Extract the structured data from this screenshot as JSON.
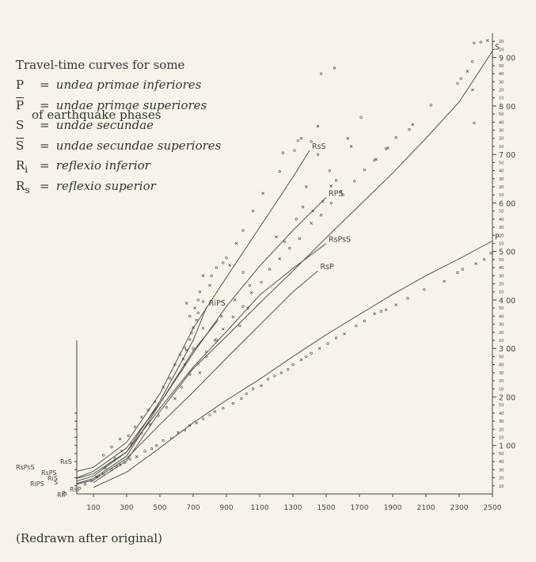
{
  "title_lines": [
    "Travel-time curves for some",
    "of earthquake phases"
  ],
  "legend": [
    {
      "symbol": "P",
      "overline": false,
      "sub": "",
      "eq": "=",
      "desc": "undea primae inferiores"
    },
    {
      "symbol": "P",
      "overline": true,
      "sub": "",
      "eq": "=",
      "desc": "undae primae superiores"
    },
    {
      "symbol": "S",
      "overline": false,
      "sub": "",
      "eq": "=",
      "desc": "undae secundae"
    },
    {
      "symbol": "S",
      "overline": true,
      "sub": "",
      "eq": "=",
      "desc": "undae secundae superiores"
    },
    {
      "symbol": "R",
      "overline": false,
      "sub": "i",
      "eq": "=",
      "desc": "reflexio inferior"
    },
    {
      "symbol": "R",
      "overline": false,
      "sub": "s",
      "eq": "=",
      "desc": "reflexio superior"
    }
  ],
  "caption": "(Redrawn after original)",
  "colors": {
    "background": "#f7f3e8",
    "ink": "#444444"
  },
  "chart_data": {
    "type": "scatter",
    "xlim": [
      0,
      2500
    ],
    "ylim": [
      0,
      570
    ],
    "x_ticks": [
      100,
      300,
      500,
      700,
      900,
      1100,
      1300,
      1500,
      1700,
      1900,
      2100,
      2300,
      2500
    ],
    "y_major_ticks": [
      {
        "value": 60,
        "label": "1 00"
      },
      {
        "value": 120,
        "label": "2 00"
      },
      {
        "value": 180,
        "label": "3 00"
      },
      {
        "value": 240,
        "label": "4 00"
      },
      {
        "value": 300,
        "label": "5 00"
      },
      {
        "value": 360,
        "label": "6 00"
      },
      {
        "value": 420,
        "label": "7 00"
      },
      {
        "value": 480,
        "label": "8 00"
      },
      {
        "value": 540,
        "label": "9 00"
      }
    ],
    "y_minor_labels": [
      "10",
      "20",
      "30",
      "40",
      "50"
    ],
    "series": [
      {
        "name": "S",
        "label": "S",
        "x": [
          100,
          300,
          500,
          700,
          900,
          1100,
          1300,
          1500,
          1700,
          1900,
          2100,
          2300,
          2500
        ],
        "y": [
          14,
          41,
          102,
          155,
          195,
          236,
          276,
          317,
          357,
          397,
          440,
          485,
          548
        ]
      },
      {
        "name": "P",
        "label": "P",
        "x": [
          100,
          300,
          500,
          700,
          900,
          1100,
          1300,
          1500,
          1700,
          1900,
          2100,
          2300,
          2500
        ],
        "y": [
          8,
          27,
          57,
          88,
          116,
          142,
          170,
          197,
          222,
          247,
          270,
          291,
          313
        ]
      },
      {
        "name": "RsS",
        "label": "RsS",
        "x": [
          0,
          100,
          300,
          500,
          700,
          900,
          1100,
          1300,
          1400
        ],
        "y": [
          28,
          33,
          64,
          124,
          205,
          268,
          330,
          392,
          425
        ]
      },
      {
        "name": "RPS",
        "label": "RPS",
        "x": [
          0,
          100,
          300,
          500,
          700,
          900,
          1100,
          1300,
          1500
        ],
        "y": [
          20,
          28,
          57,
          112,
          174,
          232,
          282,
          326,
          367
        ]
      },
      {
        "name": "RsPsS",
        "label": "RsPsS",
        "x": [
          0,
          100,
          300,
          500,
          700,
          900,
          1100,
          1300,
          1500
        ],
        "y": [
          19,
          25,
          52,
          106,
          157,
          201,
          246,
          279,
          310
        ]
      },
      {
        "name": "RsP",
        "label": "RsP",
        "x": [
          0,
          100,
          300,
          500,
          700,
          900,
          1100,
          1300,
          1450
        ],
        "y": [
          12,
          17,
          44,
          86,
          126,
          168,
          209,
          250,
          276
        ]
      },
      {
        "name": "RiPS",
        "label": "RiPS",
        "x": [
          0,
          100,
          300,
          500,
          700,
          780
        ],
        "y": [
          16,
          22,
          52,
          115,
          190,
          231
        ]
      },
      {
        "name": "ScS",
        "label": "",
        "x": [
          0,
          100,
          300,
          500,
          700,
          850
        ],
        "y": [
          13,
          19,
          47,
          112,
          177,
          215
        ]
      }
    ],
    "axis_phase_labels": [
      "RsS",
      "RsPsS",
      "RsPS",
      "RiS",
      "RiPS",
      "RsP",
      "RiP",
      "S",
      "P"
    ],
    "points": [
      [
        50,
        12
      ],
      [
        90,
        16
      ],
      [
        130,
        22
      ],
      [
        160,
        25
      ],
      [
        210,
        30
      ],
      [
        240,
        34
      ],
      [
        260,
        36
      ],
      [
        290,
        39
      ],
      [
        320,
        43
      ],
      [
        360,
        46
      ],
      [
        410,
        53
      ],
      [
        450,
        56
      ],
      [
        480,
        60
      ],
      [
        520,
        66
      ],
      [
        570,
        69
      ],
      [
        610,
        76
      ],
      [
        650,
        79
      ],
      [
        680,
        85
      ],
      [
        720,
        88
      ],
      [
        760,
        93
      ],
      [
        800,
        98
      ],
      [
        830,
        102
      ],
      [
        880,
        106
      ],
      [
        940,
        112
      ],
      [
        990,
        118
      ],
      [
        1020,
        124
      ],
      [
        1060,
        130
      ],
      [
        1110,
        134
      ],
      [
        1150,
        142
      ],
      [
        1190,
        146
      ],
      [
        1230,
        150
      ],
      [
        1270,
        154
      ],
      [
        1300,
        160
      ],
      [
        1350,
        166
      ],
      [
        1380,
        170
      ],
      [
        1410,
        174
      ],
      [
        1460,
        180
      ],
      [
        1510,
        186
      ],
      [
        1560,
        193
      ],
      [
        1610,
        198
      ],
      [
        1680,
        208
      ],
      [
        1730,
        214
      ],
      [
        1790,
        223
      ],
      [
        1830,
        226
      ],
      [
        1860,
        228
      ],
      [
        1920,
        234
      ],
      [
        1990,
        242
      ],
      [
        2090,
        253
      ],
      [
        2210,
        263
      ],
      [
        2290,
        274
      ],
      [
        2320,
        278
      ],
      [
        2400,
        285
      ],
      [
        2450,
        290
      ],
      [
        2490,
        298
      ],
      [
        120,
        21
      ],
      [
        170,
        32
      ],
      [
        230,
        44
      ],
      [
        270,
        53
      ],
      [
        330,
        62
      ],
      [
        390,
        75
      ],
      [
        440,
        86
      ],
      [
        490,
        97
      ],
      [
        540,
        107
      ],
      [
        590,
        118
      ],
      [
        630,
        132
      ],
      [
        680,
        148
      ],
      [
        730,
        161
      ],
      [
        780,
        176
      ],
      [
        840,
        191
      ],
      [
        880,
        204
      ],
      [
        940,
        219
      ],
      [
        1000,
        232
      ],
      [
        1050,
        249
      ],
      [
        1110,
        262
      ],
      [
        1160,
        278
      ],
      [
        1220,
        291
      ],
      [
        1280,
        304
      ],
      [
        1340,
        316
      ],
      [
        1410,
        335
      ],
      [
        1470,
        345
      ],
      [
        1530,
        360
      ],
      [
        1590,
        374
      ],
      [
        1670,
        387
      ],
      [
        1730,
        401
      ],
      [
        1800,
        414
      ],
      [
        1860,
        427
      ],
      [
        1920,
        441
      ],
      [
        2020,
        457
      ],
      [
        2130,
        481
      ],
      [
        2290,
        508
      ],
      [
        2350,
        523
      ],
      [
        2380,
        535
      ],
      [
        2430,
        559
      ],
      [
        2470,
        561
      ],
      [
        160,
        48
      ],
      [
        210,
        58
      ],
      [
        260,
        68
      ],
      [
        310,
        72
      ],
      [
        350,
        83
      ],
      [
        390,
        95
      ],
      [
        430,
        104
      ],
      [
        470,
        114
      ],
      [
        520,
        132
      ],
      [
        560,
        143
      ],
      [
        590,
        160
      ],
      [
        620,
        172
      ],
      [
        650,
        181
      ],
      [
        680,
        191
      ],
      [
        700,
        206
      ],
      [
        730,
        224
      ],
      [
        760,
        238
      ],
      [
        800,
        258
      ],
      [
        840,
        280
      ],
      [
        900,
        292
      ],
      [
        960,
        310
      ],
      [
        1000,
        326
      ],
      [
        1060,
        350
      ],
      [
        1120,
        372
      ],
      [
        1220,
        399
      ],
      [
        1310,
        425
      ],
      [
        1350,
        440
      ],
      [
        1410,
        436
      ],
      [
        1450,
        420
      ],
      [
        1530,
        381
      ],
      [
        1560,
        388
      ],
      [
        1600,
        370
      ],
      [
        1650,
        430
      ],
      [
        1710,
        466
      ],
      [
        1790,
        413
      ],
      [
        1870,
        428
      ],
      [
        2000,
        451
      ],
      [
        2390,
        459
      ],
      [
        2380,
        500
      ],
      [
        2310,
        514
      ],
      [
        2390,
        558
      ],
      [
        1630,
        440
      ],
      [
        1470,
        520
      ],
      [
        1550,
        527
      ],
      [
        1450,
        455
      ],
      [
        1330,
        437
      ],
      [
        1240,
        422
      ],
      [
        1380,
        380
      ],
      [
        1520,
        400
      ],
      [
        1250,
        312
      ],
      [
        1200,
        318
      ],
      [
        1320,
        340
      ],
      [
        1360,
        355
      ],
      [
        1420,
        350
      ],
      [
        1480,
        362
      ],
      [
        640,
        167
      ],
      [
        660,
        178
      ],
      [
        690,
        199
      ],
      [
        720,
        215
      ],
      [
        710,
        230
      ],
      [
        730,
        240
      ],
      [
        740,
        250
      ],
      [
        760,
        270
      ],
      [
        810,
        270
      ],
      [
        880,
        286
      ],
      [
        920,
        283
      ],
      [
        1000,
        274
      ],
      [
        1040,
        258
      ],
      [
        950,
        240
      ],
      [
        1030,
        230
      ],
      [
        980,
        208
      ],
      [
        870,
        220
      ],
      [
        830,
        190
      ],
      [
        780,
        170
      ],
      [
        740,
        150
      ],
      [
        760,
        205
      ],
      [
        680,
        220
      ],
      [
        660,
        236
      ],
      [
        700,
        180
      ],
      [
        650,
        160
      ]
    ]
  }
}
